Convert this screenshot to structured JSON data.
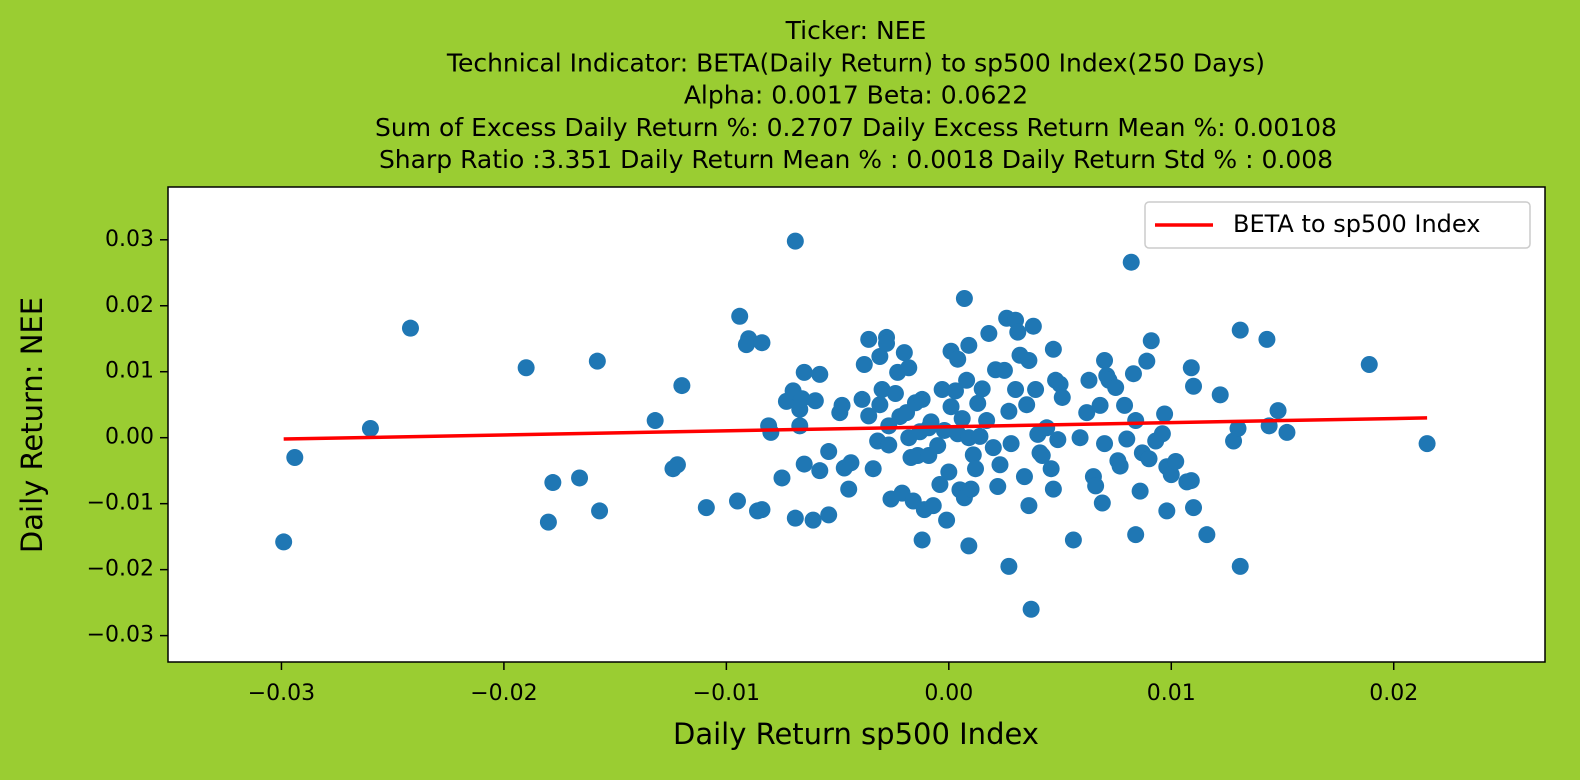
{
  "chart_data": {
    "type": "scatter",
    "title": [
      "Ticker: NEE",
      "Technical Indicator: BETA(Daily Return) to sp500 Index(250 Days)",
      "Alpha: 0.0017   Beta: 0.0622",
      "Sum of Excess Daily Return %: 0.2707   Daily Excess Return Mean %: 0.00108",
      "Sharp Ratio :3.351    Daily Return Mean % : 0.0018    Daily Return Std % : 0.008"
    ],
    "x_label": "Daily Return sp500 Index",
    "y_label": "Daily Return: NEE",
    "xlim": [
      -0.0351,
      0.0268
    ],
    "ylim": [
      -0.034,
      0.038
    ],
    "xticks": [
      {
        "value": -0.03,
        "label": "−0.03"
      },
      {
        "value": -0.02,
        "label": "−0.02"
      },
      {
        "value": -0.01,
        "label": "−0.01"
      },
      {
        "value": 0,
        "label": "0.00"
      },
      0.01,
      0.02
    ],
    "yticks": [
      {
        "value": -0.03,
        "label": "−0.03"
      },
      {
        "value": -0.02,
        "label": "−0.02"
      },
      {
        "value": -0.01,
        "label": "−0.01"
      },
      {
        "value": 0,
        "label": "0.00"
      },
      0.01,
      0.02,
      0.03
    ],
    "legend": "upper right",
    "grid": false,
    "background": "#9acd32",
    "series": [
      {
        "type": "scatter",
        "color": "#1f77b4",
        "x": [
          -0.0299,
          -0.0294,
          -0.026,
          -0.0242,
          -0.019,
          -0.018,
          -0.0178,
          -0.0166,
          -0.0158,
          -0.0157,
          -0.0132,
          -0.0122,
          -0.0124,
          -0.012,
          -0.0109,
          -0.0095,
          -0.0094,
          -0.009,
          -0.0091,
          -0.0086,
          -0.0084,
          -0.0084,
          -0.0081,
          -0.008,
          -0.0075,
          -0.0073,
          -0.007,
          -0.0069,
          -0.0069,
          -0.0067,
          -0.0067,
          -0.0066,
          -0.0065,
          -0.0065,
          -0.0061,
          -0.006,
          -0.0058,
          -0.0058,
          -0.0054,
          -0.0054,
          -0.0049,
          -0.0048,
          -0.0047,
          -0.0045,
          -0.0044,
          -0.0039,
          -0.0038,
          -0.0036,
          -0.0036,
          -0.0034,
          -0.0032,
          -0.0031,
          -0.0031,
          -0.003,
          -0.0028,
          -0.0028,
          -0.0027,
          -0.0027,
          -0.0026,
          -0.0024,
          -0.0023,
          -0.0022,
          -0.0021,
          -0.002,
          -0.0019,
          -0.0018,
          -0.0018,
          -0.0017,
          -0.0016,
          -0.0015,
          -0.0014,
          -0.0013,
          -0.0012,
          -0.0012,
          -0.0011,
          -0.0009,
          -0.0009,
          -0.0008,
          -0.0007,
          -0.0005,
          -0.0004,
          -0.0003,
          -0.0002,
          -0.0001,
          0.0,
          0.0001,
          0.0001,
          0.0003,
          0.0004,
          0.0004,
          0.0005,
          0.0006,
          0.0007,
          0.0007,
          0.0008,
          0.0009,
          0.0009,
          0.0009,
          0.001,
          0.0011,
          0.0012,
          0.0013,
          0.0014,
          0.0015,
          0.0017,
          0.0018,
          0.002,
          0.0021,
          0.0022,
          0.0023,
          0.0025,
          0.0026,
          0.0027,
          0.0027,
          0.0028,
          0.003,
          0.003,
          0.0031,
          0.0032,
          0.0034,
          0.0035,
          0.0036,
          0.0036,
          0.0037,
          0.0038,
          0.0039,
          0.004,
          0.0041,
          0.0042,
          0.0044,
          0.0046,
          0.0047,
          0.0047,
          0.0048,
          0.0049,
          0.005,
          0.0051,
          0.0056,
          0.0059,
          0.0062,
          0.0063,
          0.0065,
          0.0066,
          0.0068,
          0.0069,
          0.007,
          0.007,
          0.0071,
          0.0072,
          0.0075,
          0.0076,
          0.0077,
          0.0079,
          0.008,
          0.0082,
          0.0083,
          0.0084,
          0.0084,
          0.0086,
          0.0087,
          0.0089,
          0.009,
          0.0091,
          0.0093,
          0.0096,
          0.0097,
          0.0098,
          0.0098,
          0.01,
          0.0102,
          0.0107,
          0.0109,
          0.0109,
          0.011,
          0.011,
          0.0116,
          0.0122,
          0.0128,
          0.013,
          0.0131,
          0.0131,
          0.0143,
          0.0144,
          0.0148,
          0.0152,
          0.0189,
          0.0215
        ],
        "values": [
          -0.0158,
          -0.003,
          0.0014,
          0.0166,
          0.0106,
          -0.0128,
          -0.0068,
          -0.0061,
          0.0116,
          -0.0111,
          0.0026,
          -0.0041,
          -0.0047,
          0.0079,
          -0.0106,
          -0.0096,
          0.0184,
          0.015,
          0.0141,
          -0.0111,
          0.0144,
          -0.0109,
          0.0018,
          0.0008,
          -0.0061,
          0.0055,
          0.0071,
          0.0298,
          -0.0122,
          0.0018,
          0.0043,
          0.0059,
          0.0099,
          -0.004,
          -0.0125,
          0.0056,
          0.0096,
          -0.005,
          -0.0117,
          -0.0021,
          0.0038,
          0.0049,
          -0.0046,
          -0.0078,
          -0.0038,
          0.0058,
          0.0111,
          0.0033,
          0.0149,
          -0.0047,
          -0.0005,
          0.005,
          0.0123,
          0.0073,
          0.0152,
          0.0143,
          0.0018,
          -0.0011,
          -0.0093,
          0.0067,
          0.0099,
          0.0032,
          -0.0084,
          0.0129,
          0.0038,
          0.0,
          0.0106,
          -0.003,
          -0.0096,
          0.0053,
          -0.0027,
          0.0009,
          -0.0155,
          0.0058,
          -0.0109,
          0.0015,
          -0.0027,
          0.0024,
          -0.0103,
          -0.0012,
          -0.0071,
          0.0073,
          0.0011,
          -0.0125,
          -0.0052,
          0.0131,
          0.0047,
          0.0071,
          0.0006,
          0.0119,
          -0.0079,
          0.0029,
          0.0211,
          -0.0091,
          0.0087,
          -0.0164,
          0.0,
          0.014,
          -0.0078,
          -0.0026,
          -0.0047,
          0.0052,
          0.0002,
          0.0074,
          0.0026,
          0.0158,
          -0.0015,
          0.0103,
          -0.0074,
          -0.0041,
          0.0102,
          0.0181,
          -0.0195,
          0.004,
          -0.0009,
          0.0178,
          0.0073,
          0.016,
          0.0125,
          -0.0059,
          0.005,
          0.0117,
          -0.0103,
          -0.026,
          0.0169,
          0.0073,
          0.0005,
          -0.0023,
          -0.0027,
          0.0015,
          -0.0047,
          -0.0078,
          0.0134,
          0.0087,
          -0.0003,
          0.0081,
          0.0061,
          -0.0155,
          0.0,
          0.0038,
          0.0087,
          -0.0059,
          -0.0073,
          0.0049,
          -0.0099,
          -0.0009,
          0.0117,
          0.0094,
          0.0087,
          0.0076,
          -0.0035,
          -0.0043,
          0.0049,
          -0.0002,
          0.0266,
          0.0097,
          0.0026,
          -0.0147,
          -0.0081,
          -0.0023,
          0.0116,
          -0.0032,
          0.0147,
          -0.0005,
          0.0006,
          0.0036,
          -0.0044,
          -0.0111,
          -0.0056,
          -0.0036,
          -0.0067,
          -0.0065,
          0.0106,
          0.0078,
          -0.0106,
          -0.0147,
          0.0065,
          -0.0005,
          0.0014,
          -0.0195,
          0.0163,
          0.0149,
          0.0018,
          0.0041,
          0.0008,
          0.0111,
          -0.0009
        ]
      },
      {
        "type": "line",
        "name": "BETA to sp500 Index",
        "color": "#ff0000",
        "x": [
          -0.0299,
          0.0215
        ],
        "values": [
          -0.0002,
          0.003
        ]
      }
    ]
  }
}
